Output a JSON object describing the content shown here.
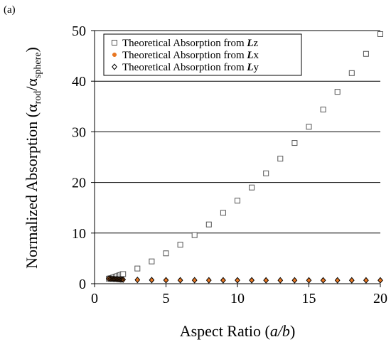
{
  "panel_label": "(a)",
  "chart_data": {
    "type": "scatter",
    "xlabel": "Aspect Ratio (a/b)",
    "xlabel_parts": {
      "prefix": "Aspect Ratio (",
      "italic": "a/b",
      "suffix": ")"
    },
    "ylabel": "Normalized Absorption (α_rod/α_sphere)",
    "ylabel_parts": {
      "prefix": "Normalized Absorption (",
      "alpha": "α",
      "sub_rod": "rod",
      "sub_sphere": "sphere",
      "suffix": ")"
    },
    "xlim": [
      0,
      20
    ],
    "ylim": [
      0,
      50
    ],
    "x_ticks": [
      0,
      5,
      10,
      15,
      20
    ],
    "y_ticks": [
      0,
      10,
      20,
      30,
      40,
      50
    ],
    "grid": "horizontal",
    "legend_position": "top-left",
    "series": [
      {
        "name": "Theoretical Absorption from Lz",
        "legend_prefix": "Theoretical Absorption from ",
        "legend_bold": "L",
        "legend_suffix": "z",
        "marker": "square",
        "color": "#555555",
        "x": [
          1.0,
          1.1,
          1.2,
          1.3,
          1.4,
          1.5,
          1.6,
          1.7,
          1.8,
          1.9,
          2.0,
          3,
          4,
          5,
          6,
          7,
          8,
          9,
          10,
          11,
          12,
          13,
          14,
          15,
          16,
          17,
          18,
          19,
          20
        ],
        "y": [
          1.0,
          1.05,
          1.1,
          1.2,
          1.3,
          1.4,
          1.5,
          1.6,
          1.7,
          1.8,
          1.9,
          3.0,
          4.4,
          6.0,
          7.7,
          9.6,
          11.7,
          14.0,
          16.4,
          19.0,
          21.8,
          24.7,
          27.8,
          31.0,
          34.4,
          37.9,
          41.6,
          45.4,
          49.3
        ]
      },
      {
        "name": "Theoretical Absorption from Lx",
        "legend_prefix": "Theoretical Absorption from ",
        "legend_bold": "L",
        "legend_suffix": "x",
        "marker": "circle",
        "color": "#E87722",
        "x": [
          1.0,
          1.1,
          1.2,
          1.3,
          1.4,
          1.5,
          1.6,
          1.7,
          1.8,
          1.9,
          2.0,
          3,
          4,
          5,
          6,
          7,
          8,
          9,
          10,
          11,
          12,
          13,
          14,
          15,
          16,
          17,
          18,
          19,
          20
        ],
        "y": [
          1.0,
          0.98,
          0.96,
          0.94,
          0.92,
          0.9,
          0.88,
          0.86,
          0.84,
          0.82,
          0.8,
          0.75,
          0.72,
          0.7,
          0.69,
          0.69,
          0.68,
          0.68,
          0.68,
          0.68,
          0.67,
          0.67,
          0.67,
          0.67,
          0.67,
          0.67,
          0.67,
          0.67,
          0.67
        ]
      },
      {
        "name": "Theoretical Absorption from Ly",
        "legend_prefix": "Theoretical Absorption from ",
        "legend_bold": "L",
        "legend_suffix": "y",
        "marker": "diamond",
        "color": "#000000",
        "x": [
          1.0,
          1.1,
          1.2,
          1.3,
          1.4,
          1.5,
          1.6,
          1.7,
          1.8,
          1.9,
          2.0,
          3,
          4,
          5,
          6,
          7,
          8,
          9,
          10,
          11,
          12,
          13,
          14,
          15,
          16,
          17,
          18,
          19,
          20
        ],
        "y": [
          1.0,
          0.98,
          0.96,
          0.94,
          0.92,
          0.9,
          0.88,
          0.86,
          0.84,
          0.82,
          0.8,
          0.75,
          0.72,
          0.7,
          0.69,
          0.69,
          0.68,
          0.68,
          0.68,
          0.68,
          0.67,
          0.67,
          0.67,
          0.67,
          0.67,
          0.67,
          0.67,
          0.67,
          0.67
        ]
      }
    ]
  }
}
